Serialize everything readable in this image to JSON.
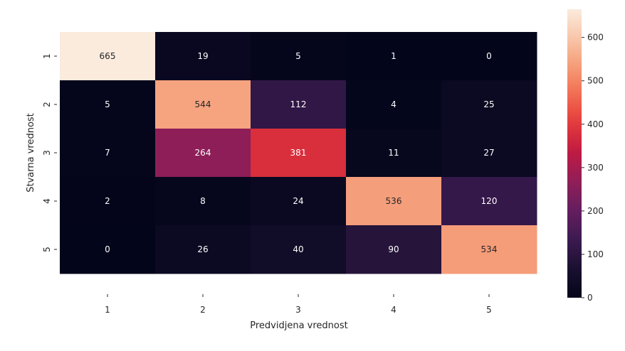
{
  "chart_data": {
    "type": "heatmap",
    "title": "",
    "xlabel": "Predvidjena vrednost",
    "ylabel": "Stvarna vrednost",
    "x_categories": [
      "1",
      "2",
      "3",
      "4",
      "5"
    ],
    "y_categories": [
      "1",
      "2",
      "3",
      "4",
      "5"
    ],
    "values": [
      [
        665,
        19,
        5,
        1,
        0
      ],
      [
        5,
        544,
        112,
        4,
        25
      ],
      [
        7,
        264,
        381,
        11,
        27
      ],
      [
        2,
        8,
        24,
        536,
        120
      ],
      [
        0,
        26,
        40,
        90,
        534
      ]
    ],
    "colorbar": {
      "ticks": [
        "0",
        "100",
        "200",
        "300",
        "400",
        "500",
        "600"
      ],
      "vmin": 0,
      "vmax": 665,
      "colormap": "rocket"
    },
    "grid": false,
    "legend": "none"
  }
}
